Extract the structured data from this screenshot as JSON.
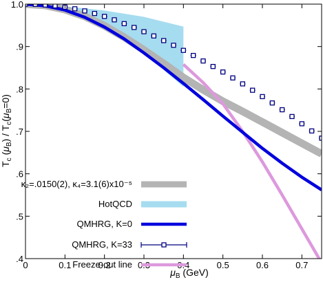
{
  "chart_data": {
    "type": "line",
    "xlabel": "μ_B (GeV)",
    "ylabel": "T_c (μ_B) / T_c(μ_B=0)",
    "xlim": [
      0,
      0.75
    ],
    "ylim": [
      0.4,
      1.0
    ],
    "x_ticks": [
      0,
      0.1,
      0.2,
      0.3,
      0.4,
      0.5,
      0.6,
      0.7
    ],
    "x_tick_labels": [
      "0",
      "0.1",
      "0.2",
      "0.3",
      "0.4",
      "0.5",
      "0.6",
      "0.7"
    ],
    "y_ticks": [
      0.4,
      0.5,
      0.6,
      0.7,
      0.8,
      0.9,
      1.0
    ],
    "y_tick_labels": [
      ".4",
      ".5",
      ".6",
      ".7",
      ".8",
      ".9",
      "1.0"
    ],
    "legend_position": "lower-left",
    "grid": false,
    "series": [
      {
        "name": "κ₂=.0150(2), κ₄=3.1(6)x10⁻⁵",
        "style": "band",
        "color": "#b4b4b4",
        "x": [
          0,
          0.05,
          0.1,
          0.15,
          0.2,
          0.25,
          0.3,
          0.35,
          0.4,
          0.45,
          0.5,
          0.55,
          0.6,
          0.65,
          0.7,
          0.75
        ],
        "y": [
          1.0,
          0.997,
          0.987,
          0.971,
          0.949,
          0.922,
          0.892,
          0.86,
          0.827,
          0.798,
          0.771,
          0.747,
          0.722,
          0.697,
          0.672,
          0.647
        ]
      },
      {
        "name": "HotQCD",
        "style": "band",
        "color": "#a6dcef",
        "x": [
          0,
          0.1,
          0.2,
          0.3,
          0.4
        ],
        "y_low": [
          1.0,
          0.985,
          0.945,
          0.885,
          0.805
        ],
        "y_high": [
          1.0,
          0.995,
          0.985,
          0.97,
          0.947
        ]
      },
      {
        "name": "QMHRG, K=0",
        "style": "line",
        "color": "#0000dd",
        "x": [
          0,
          0.05,
          0.1,
          0.15,
          0.2,
          0.25,
          0.3,
          0.35,
          0.4,
          0.45,
          0.5,
          0.55,
          0.6,
          0.65,
          0.7,
          0.75
        ],
        "y": [
          1.0,
          0.996,
          0.986,
          0.969,
          0.946,
          0.918,
          0.885,
          0.85,
          0.813,
          0.775,
          0.736,
          0.698,
          0.66,
          0.625,
          0.592,
          0.562
        ]
      },
      {
        "name": "QMHRG, K=33",
        "style": "markers",
        "color": "#000080",
        "x": [
          0,
          0.025,
          0.05,
          0.075,
          0.1,
          0.125,
          0.15,
          0.175,
          0.2,
          0.225,
          0.25,
          0.275,
          0.3,
          0.325,
          0.35,
          0.375,
          0.4,
          0.425,
          0.45,
          0.475,
          0.5,
          0.525,
          0.55,
          0.575,
          0.6,
          0.625,
          0.65,
          0.675,
          0.7,
          0.725,
          0.75
        ],
        "y": [
          1.0,
          0.9995,
          0.998,
          0.996,
          0.993,
          0.989,
          0.984,
          0.978,
          0.971,
          0.963,
          0.954,
          0.945,
          0.935,
          0.925,
          0.914,
          0.903,
          0.891,
          0.879,
          0.866,
          0.853,
          0.84,
          0.826,
          0.812,
          0.797,
          0.782,
          0.767,
          0.751,
          0.735,
          0.718,
          0.701,
          0.684
        ]
      },
      {
        "name": "Freeze-out line",
        "style": "line",
        "color": "#dd99dd",
        "x": [
          0.4,
          0.45,
          0.5,
          0.55,
          0.6,
          0.65,
          0.7,
          0.75
        ],
        "y": [
          0.858,
          0.815,
          0.765,
          0.7,
          0.628,
          0.55,
          0.47,
          0.39
        ]
      }
    ]
  }
}
